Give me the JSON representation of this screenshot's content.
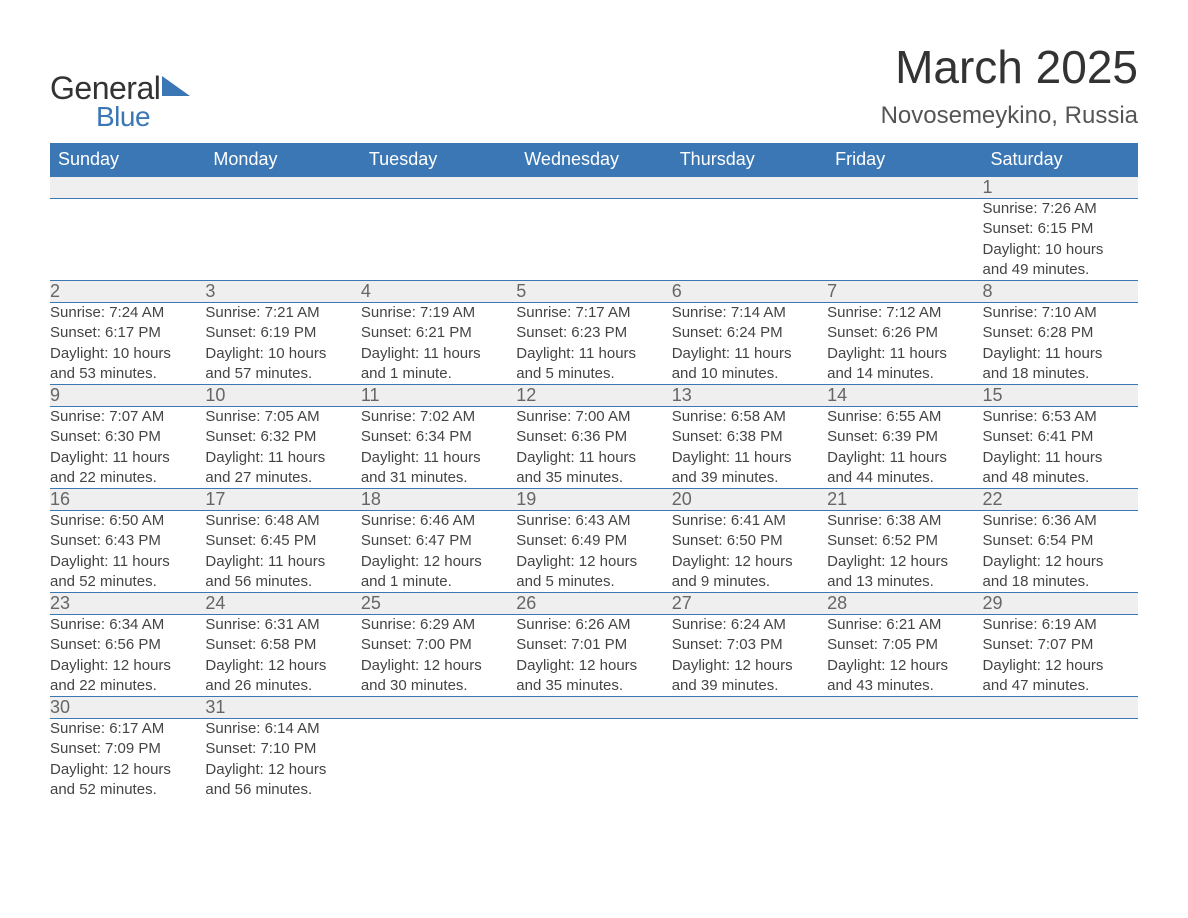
{
  "brand": {
    "name1": "General",
    "name2": "Blue",
    "accent_color": "#3b77b5"
  },
  "title": "March 2025",
  "location": "Novosemeykino, Russia",
  "header_bg": "#3b77b5",
  "header_fg": "#ffffff",
  "daynum_bg": "#efefef",
  "border_color": "#3b77b5",
  "text_color": "#333333",
  "weekdays": [
    "Sunday",
    "Monday",
    "Tuesday",
    "Wednesday",
    "Thursday",
    "Friday",
    "Saturday"
  ],
  "weeks": [
    [
      null,
      null,
      null,
      null,
      null,
      null,
      {
        "n": "1",
        "sr": "Sunrise: 7:26 AM",
        "ss": "Sunset: 6:15 PM",
        "d1": "Daylight: 10 hours",
        "d2": "and 49 minutes."
      }
    ],
    [
      {
        "n": "2",
        "sr": "Sunrise: 7:24 AM",
        "ss": "Sunset: 6:17 PM",
        "d1": "Daylight: 10 hours",
        "d2": "and 53 minutes."
      },
      {
        "n": "3",
        "sr": "Sunrise: 7:21 AM",
        "ss": "Sunset: 6:19 PM",
        "d1": "Daylight: 10 hours",
        "d2": "and 57 minutes."
      },
      {
        "n": "4",
        "sr": "Sunrise: 7:19 AM",
        "ss": "Sunset: 6:21 PM",
        "d1": "Daylight: 11 hours",
        "d2": "and 1 minute."
      },
      {
        "n": "5",
        "sr": "Sunrise: 7:17 AM",
        "ss": "Sunset: 6:23 PM",
        "d1": "Daylight: 11 hours",
        "d2": "and 5 minutes."
      },
      {
        "n": "6",
        "sr": "Sunrise: 7:14 AM",
        "ss": "Sunset: 6:24 PM",
        "d1": "Daylight: 11 hours",
        "d2": "and 10 minutes."
      },
      {
        "n": "7",
        "sr": "Sunrise: 7:12 AM",
        "ss": "Sunset: 6:26 PM",
        "d1": "Daylight: 11 hours",
        "d2": "and 14 minutes."
      },
      {
        "n": "8",
        "sr": "Sunrise: 7:10 AM",
        "ss": "Sunset: 6:28 PM",
        "d1": "Daylight: 11 hours",
        "d2": "and 18 minutes."
      }
    ],
    [
      {
        "n": "9",
        "sr": "Sunrise: 7:07 AM",
        "ss": "Sunset: 6:30 PM",
        "d1": "Daylight: 11 hours",
        "d2": "and 22 minutes."
      },
      {
        "n": "10",
        "sr": "Sunrise: 7:05 AM",
        "ss": "Sunset: 6:32 PM",
        "d1": "Daylight: 11 hours",
        "d2": "and 27 minutes."
      },
      {
        "n": "11",
        "sr": "Sunrise: 7:02 AM",
        "ss": "Sunset: 6:34 PM",
        "d1": "Daylight: 11 hours",
        "d2": "and 31 minutes."
      },
      {
        "n": "12",
        "sr": "Sunrise: 7:00 AM",
        "ss": "Sunset: 6:36 PM",
        "d1": "Daylight: 11 hours",
        "d2": "and 35 minutes."
      },
      {
        "n": "13",
        "sr": "Sunrise: 6:58 AM",
        "ss": "Sunset: 6:38 PM",
        "d1": "Daylight: 11 hours",
        "d2": "and 39 minutes."
      },
      {
        "n": "14",
        "sr": "Sunrise: 6:55 AM",
        "ss": "Sunset: 6:39 PM",
        "d1": "Daylight: 11 hours",
        "d2": "and 44 minutes."
      },
      {
        "n": "15",
        "sr": "Sunrise: 6:53 AM",
        "ss": "Sunset: 6:41 PM",
        "d1": "Daylight: 11 hours",
        "d2": "and 48 minutes."
      }
    ],
    [
      {
        "n": "16",
        "sr": "Sunrise: 6:50 AM",
        "ss": "Sunset: 6:43 PM",
        "d1": "Daylight: 11 hours",
        "d2": "and 52 minutes."
      },
      {
        "n": "17",
        "sr": "Sunrise: 6:48 AM",
        "ss": "Sunset: 6:45 PM",
        "d1": "Daylight: 11 hours",
        "d2": "and 56 minutes."
      },
      {
        "n": "18",
        "sr": "Sunrise: 6:46 AM",
        "ss": "Sunset: 6:47 PM",
        "d1": "Daylight: 12 hours",
        "d2": "and 1 minute."
      },
      {
        "n": "19",
        "sr": "Sunrise: 6:43 AM",
        "ss": "Sunset: 6:49 PM",
        "d1": "Daylight: 12 hours",
        "d2": "and 5 minutes."
      },
      {
        "n": "20",
        "sr": "Sunrise: 6:41 AM",
        "ss": "Sunset: 6:50 PM",
        "d1": "Daylight: 12 hours",
        "d2": "and 9 minutes."
      },
      {
        "n": "21",
        "sr": "Sunrise: 6:38 AM",
        "ss": "Sunset: 6:52 PM",
        "d1": "Daylight: 12 hours",
        "d2": "and 13 minutes."
      },
      {
        "n": "22",
        "sr": "Sunrise: 6:36 AM",
        "ss": "Sunset: 6:54 PM",
        "d1": "Daylight: 12 hours",
        "d2": "and 18 minutes."
      }
    ],
    [
      {
        "n": "23",
        "sr": "Sunrise: 6:34 AM",
        "ss": "Sunset: 6:56 PM",
        "d1": "Daylight: 12 hours",
        "d2": "and 22 minutes."
      },
      {
        "n": "24",
        "sr": "Sunrise: 6:31 AM",
        "ss": "Sunset: 6:58 PM",
        "d1": "Daylight: 12 hours",
        "d2": "and 26 minutes."
      },
      {
        "n": "25",
        "sr": "Sunrise: 6:29 AM",
        "ss": "Sunset: 7:00 PM",
        "d1": "Daylight: 12 hours",
        "d2": "and 30 minutes."
      },
      {
        "n": "26",
        "sr": "Sunrise: 6:26 AM",
        "ss": "Sunset: 7:01 PM",
        "d1": "Daylight: 12 hours",
        "d2": "and 35 minutes."
      },
      {
        "n": "27",
        "sr": "Sunrise: 6:24 AM",
        "ss": "Sunset: 7:03 PM",
        "d1": "Daylight: 12 hours",
        "d2": "and 39 minutes."
      },
      {
        "n": "28",
        "sr": "Sunrise: 6:21 AM",
        "ss": "Sunset: 7:05 PM",
        "d1": "Daylight: 12 hours",
        "d2": "and 43 minutes."
      },
      {
        "n": "29",
        "sr": "Sunrise: 6:19 AM",
        "ss": "Sunset: 7:07 PM",
        "d1": "Daylight: 12 hours",
        "d2": "and 47 minutes."
      }
    ],
    [
      {
        "n": "30",
        "sr": "Sunrise: 6:17 AM",
        "ss": "Sunset: 7:09 PM",
        "d1": "Daylight: 12 hours",
        "d2": "and 52 minutes."
      },
      {
        "n": "31",
        "sr": "Sunrise: 6:14 AM",
        "ss": "Sunset: 7:10 PM",
        "d1": "Daylight: 12 hours",
        "d2": "and 56 minutes."
      },
      null,
      null,
      null,
      null,
      null
    ]
  ]
}
